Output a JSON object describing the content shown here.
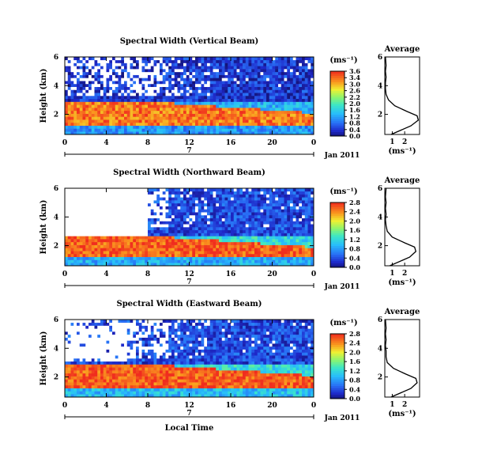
{
  "figure": {
    "date_label": "7",
    "month_label": "Jan 2011",
    "bottom_xlabel": "Local Time"
  },
  "chart_data": [
    {
      "type": "heatmap",
      "title": "Spectral Width (Vertical Beam)",
      "xlabel": "",
      "ylabel": "Height (km)",
      "x_ticks": [
        "0",
        "4",
        "8",
        "12",
        "16",
        "20",
        "0"
      ],
      "x_range_hours": [
        0,
        24
      ],
      "y_ticks": [
        "2",
        "4",
        "6"
      ],
      "y_range_km": [
        0.6,
        6.0
      ],
      "colorbar": {
        "unit": "(ms⁻¹)",
        "ticks": [
          "3.6",
          "3.4",
          "3.0",
          "2.6",
          "2.2",
          "2.0",
          "1.6",
          "1.2",
          "0.8",
          "0.4",
          "0.0"
        ],
        "range": [
          0,
          3.6
        ]
      },
      "zones": [
        {
          "height_km": [
            0.6,
            1.2
          ],
          "typical_ms": 1.0
        },
        {
          "height_km": [
            1.2,
            2.8
          ],
          "typical_ms": 3.2
        },
        {
          "height_km": [
            2.8,
            6.0
          ],
          "typical_ms": 0.4
        }
      ],
      "average_profile": {
        "title": "Average",
        "xlabel": "(ms⁻¹)",
        "x_ticks": [
          "1",
          "2"
        ],
        "y_ticks": [
          "2",
          "4",
          "6"
        ],
        "height_km": [
          0.6,
          1.2,
          1.6,
          1.9,
          2.2,
          2.6,
          3.0,
          3.4,
          3.8,
          4.2,
          4.6,
          5.0,
          5.4,
          6.0
        ],
        "width_ms": [
          0.9,
          2.5,
          3.1,
          3.0,
          2.2,
          1.2,
          0.7,
          0.5,
          0.45,
          0.45,
          0.5,
          0.45,
          0.5,
          0.45
        ]
      }
    },
    {
      "type": "heatmap",
      "title": "Spectral Width (Northward Beam)",
      "xlabel": "",
      "ylabel": "Height (km)",
      "x_ticks": [
        "0",
        "4",
        "8",
        "12",
        "16",
        "20",
        "0"
      ],
      "x_range_hours": [
        0,
        24
      ],
      "y_ticks": [
        "2",
        "4",
        "6"
      ],
      "y_range_km": [
        0.6,
        6.0
      ],
      "colorbar": {
        "unit": "(ms⁻¹)",
        "ticks": [
          "2.8",
          "2.4",
          "2.0",
          "1.6",
          "1.2",
          "0.8",
          "0.4",
          "0.0"
        ],
        "range": [
          0,
          2.8
        ]
      },
      "zones": [
        {
          "height_km": [
            0.6,
            1.2
          ],
          "typical_ms": 0.9
        },
        {
          "height_km": [
            1.2,
            2.6
          ],
          "typical_ms": 2.6
        },
        {
          "height_km": [
            2.6,
            6.0
          ],
          "typical_ms": 0.4
        }
      ],
      "average_profile": {
        "title": "Average",
        "xlabel": "(ms⁻¹)",
        "x_ticks": [
          "1",
          "2"
        ],
        "y_ticks": [
          "2",
          "4",
          "6"
        ],
        "height_km": [
          0.6,
          1.2,
          1.6,
          1.9,
          2.2,
          2.6,
          3.0,
          3.4,
          3.8,
          4.2,
          4.6,
          5.0,
          5.4,
          6.0
        ],
        "width_ms": [
          0.8,
          2.4,
          2.9,
          2.8,
          2.0,
          1.0,
          0.6,
          0.5,
          0.45,
          0.5,
          0.45,
          0.5,
          0.45,
          0.5
        ]
      }
    },
    {
      "type": "heatmap",
      "title": "Spectral Width (Eastward Beam)",
      "xlabel": "Local Time",
      "ylabel": "Height (km)",
      "x_ticks": [
        "0",
        "4",
        "8",
        "12",
        "16",
        "20",
        "0"
      ],
      "x_range_hours": [
        0,
        24
      ],
      "y_ticks": [
        "2",
        "4",
        "6"
      ],
      "y_range_km": [
        0.6,
        6.0
      ],
      "colorbar": {
        "unit": "(ms⁻¹)",
        "ticks": [
          "2.8",
          "2.4",
          "2.0",
          "1.6",
          "1.2",
          "0.8",
          "0.4",
          "0.0"
        ],
        "range": [
          0,
          2.8
        ]
      },
      "zones": [
        {
          "height_km": [
            0.6,
            1.3
          ],
          "typical_ms": 1.0
        },
        {
          "height_km": [
            1.3,
            2.8
          ],
          "typical_ms": 2.6
        },
        {
          "height_km": [
            2.8,
            6.0
          ],
          "typical_ms": 0.4
        }
      ],
      "average_profile": {
        "title": "Average",
        "xlabel": "(ms⁻¹)",
        "x_ticks": [
          "1",
          "2"
        ],
        "y_ticks": [
          "2",
          "4",
          "6"
        ],
        "height_km": [
          0.6,
          1.2,
          1.6,
          1.9,
          2.2,
          2.6,
          3.0,
          3.4,
          3.8,
          4.2,
          4.6,
          5.0,
          5.4,
          6.0
        ],
        "width_ms": [
          0.9,
          2.5,
          3.0,
          2.9,
          2.1,
          1.1,
          0.6,
          0.5,
          0.5,
          0.45,
          0.5,
          0.45,
          0.5,
          0.45
        ]
      }
    }
  ]
}
